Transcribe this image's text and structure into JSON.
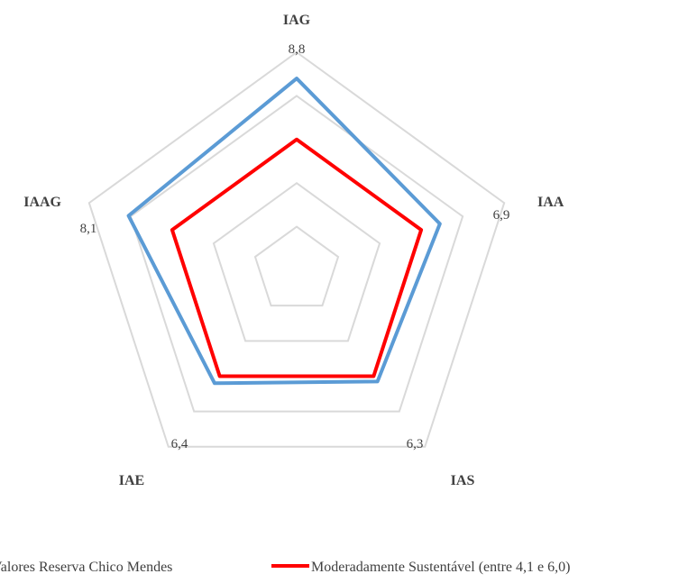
{
  "chart_data": {
    "type": "radar",
    "title": "",
    "categories": [
      "IAG",
      "IAA",
      "IAS",
      "IAE",
      "IAAG"
    ],
    "rlim": [
      0,
      10
    ],
    "grid": true,
    "gridlines": [
      2,
      4,
      6,
      8,
      10
    ],
    "series": [
      {
        "name": "Valores Reserva Chico Mendes",
        "color": "#5b9bd5",
        "values": [
          8.8,
          6.9,
          6.3,
          6.4,
          8.1
        ],
        "labels": [
          "8,8",
          "6,9",
          "6,3",
          "6,4",
          "8,1"
        ]
      },
      {
        "name": "Moderadamente Sustentável (entre 4,1 e 6,0)",
        "color": "#ff0000",
        "values": [
          6.0,
          6.0,
          6.0,
          6.0,
          6.0
        ]
      }
    ],
    "legend": "bottom"
  }
}
